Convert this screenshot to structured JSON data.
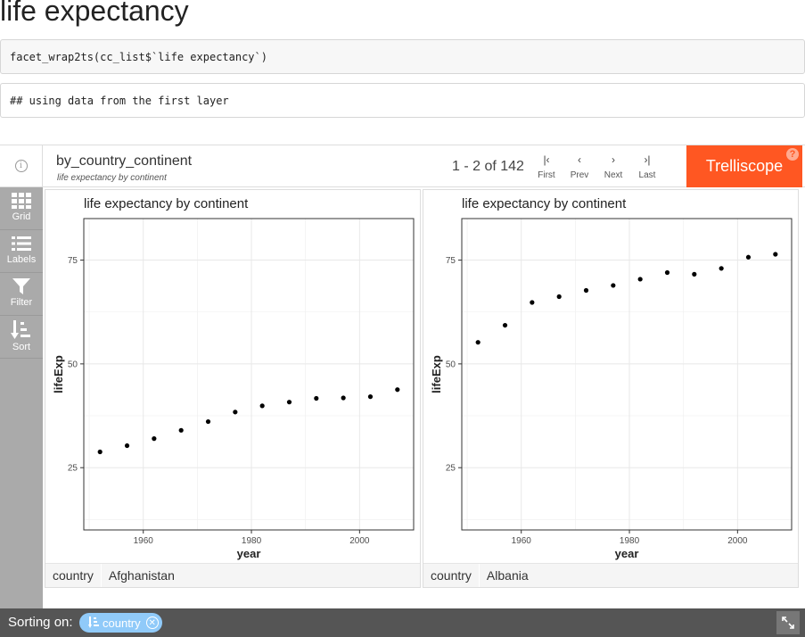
{
  "page": {
    "title": "life expectancy",
    "code_input": "facet_wrap2ts(cc_list$`life expectancy`)",
    "code_output": "## using data from the first layer"
  },
  "header": {
    "display_name": "by_country_continent",
    "display_desc": "life expectancy by continent",
    "pagination": "1 - 2 of 142",
    "nav": [
      {
        "glyph": "|‹",
        "label": "First"
      },
      {
        "glyph": "‹",
        "label": "Prev"
      },
      {
        "glyph": "›",
        "label": "Next"
      },
      {
        "glyph": "›|",
        "label": "Last"
      }
    ],
    "brand": "Trelliscope",
    "help": "?"
  },
  "sidebar": {
    "items": [
      {
        "label": "Grid",
        "icon": "grid-icon"
      },
      {
        "label": "Labels",
        "icon": "list-icon"
      },
      {
        "label": "Filter",
        "icon": "filter-icon"
      },
      {
        "label": "Sort",
        "icon": "sort-icon"
      }
    ]
  },
  "panels": [
    {
      "label_key": "country",
      "label_value": "Afghanistan"
    },
    {
      "label_key": "country",
      "label_value": "Albania"
    }
  ],
  "chart_data": [
    {
      "type": "scatter",
      "title": "life expectancy by continent",
      "xlabel": "year",
      "ylabel": "lifeExp",
      "xlim": [
        1949,
        2010
      ],
      "ylim": [
        10,
        85
      ],
      "xticks": [
        1960,
        1980,
        2000
      ],
      "yticks": [
        25,
        50,
        75
      ],
      "grid": true,
      "x": [
        1952,
        1957,
        1962,
        1967,
        1972,
        1977,
        1982,
        1987,
        1992,
        1997,
        2002,
        2007
      ],
      "y": [
        28.8,
        30.3,
        32.0,
        34.0,
        36.1,
        38.4,
        39.9,
        40.8,
        41.7,
        41.8,
        42.1,
        43.8
      ]
    },
    {
      "type": "scatter",
      "title": "life expectancy by continent",
      "xlabel": "year",
      "ylabel": "lifeExp",
      "xlim": [
        1949,
        2010
      ],
      "ylim": [
        10,
        85
      ],
      "xticks": [
        1960,
        1980,
        2000
      ],
      "yticks": [
        25,
        50,
        75
      ],
      "grid": true,
      "x": [
        1952,
        1957,
        1962,
        1967,
        1972,
        1977,
        1982,
        1987,
        1992,
        1997,
        2002,
        2007
      ],
      "y": [
        55.2,
        59.3,
        64.8,
        66.2,
        67.7,
        68.9,
        70.4,
        72.0,
        71.6,
        73.0,
        75.7,
        76.4
      ]
    }
  ],
  "footer": {
    "sorting_label": "Sorting on:",
    "sort_chip": "country"
  }
}
